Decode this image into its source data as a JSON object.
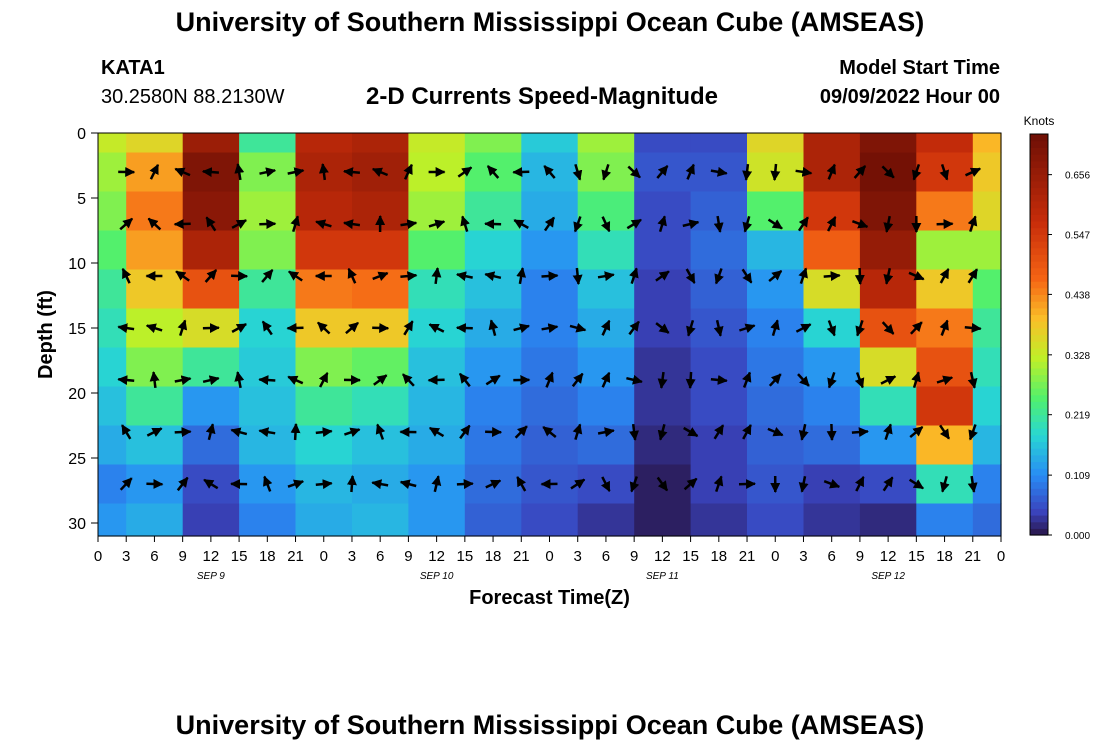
{
  "header": {
    "title": "University of Southern Mississippi Ocean Cube (AMSEAS)",
    "station_id": "KATA1",
    "coords": "30.2580N  88.2130W",
    "subtitle": "2-D Currents Speed-Magnitude",
    "model_start_label": "Model Start Time",
    "model_start_value": "09/09/2022 Hour 00",
    "bottom_title": "University of Southern Mississippi Ocean Cube (AMSEAS)"
  },
  "colorbar": {
    "unit_label": "Knots",
    "tick_labels": [
      "0.656",
      "0.547",
      "0.438",
      "0.328",
      "0.219",
      "0.109",
      "0.000"
    ],
    "tick_values": [
      0.656,
      0.547,
      0.438,
      0.328,
      0.219,
      0.109,
      0.0
    ],
    "range": [
      0.0,
      0.73
    ]
  },
  "chart_data": {
    "type": "heatmap",
    "title": "2-D Currents Speed-Magnitude",
    "xlabel": "Forecast Time(Z)",
    "ylabel": "Depth (ft)",
    "x_ticks": [
      "0",
      "3",
      "6",
      "9",
      "12",
      "15",
      "18",
      "21",
      "0",
      "3",
      "6",
      "9",
      "12",
      "15",
      "18",
      "21",
      "0",
      "3",
      "6",
      "9",
      "12",
      "15",
      "18",
      "21",
      "0",
      "3",
      "6",
      "9",
      "12",
      "15",
      "18",
      "21",
      "0"
    ],
    "x_hours_range": [
      0,
      96
    ],
    "date_labels": [
      {
        "text": "SEP 9",
        "hour": 12
      },
      {
        "text": "SEP 10",
        "hour": 36
      },
      {
        "text": "SEP 11",
        "hour": 60
      },
      {
        "text": "SEP 12",
        "hour": 84
      }
    ],
    "y_ticks": [
      "0",
      "5",
      "10",
      "15",
      "20",
      "25",
      "30"
    ],
    "y_tick_values": [
      0,
      5,
      10,
      15,
      20,
      25,
      30
    ],
    "ylim": [
      31,
      0
    ],
    "depths_ft": [
      0,
      3,
      6,
      9,
      12,
      15,
      18,
      21,
      24,
      27,
      30
    ],
    "hours": [
      0,
      6,
      12,
      18,
      24,
      30,
      36,
      42,
      48,
      54,
      60,
      66,
      72,
      78,
      84,
      90,
      96
    ],
    "speed_knots": [
      [
        0.33,
        0.36,
        0.65,
        0.22,
        0.6,
        0.62,
        0.33,
        0.28,
        0.17,
        0.3,
        0.05,
        0.05,
        0.36,
        0.62,
        0.7,
        0.58,
        0.4
      ],
      [
        0.3,
        0.42,
        0.7,
        0.28,
        0.62,
        0.64,
        0.32,
        0.25,
        0.15,
        0.28,
        0.06,
        0.06,
        0.34,
        0.62,
        0.72,
        0.55,
        0.38
      ],
      [
        0.28,
        0.45,
        0.68,
        0.3,
        0.6,
        0.62,
        0.3,
        0.22,
        0.14,
        0.24,
        0.05,
        0.07,
        0.25,
        0.55,
        0.7,
        0.45,
        0.36
      ],
      [
        0.25,
        0.42,
        0.62,
        0.28,
        0.55,
        0.55,
        0.25,
        0.18,
        0.12,
        0.2,
        0.05,
        0.08,
        0.15,
        0.48,
        0.66,
        0.3,
        0.3
      ],
      [
        0.22,
        0.38,
        0.5,
        0.22,
        0.45,
        0.46,
        0.2,
        0.16,
        0.1,
        0.16,
        0.04,
        0.07,
        0.12,
        0.35,
        0.6,
        0.38,
        0.25
      ],
      [
        0.2,
        0.32,
        0.35,
        0.18,
        0.38,
        0.38,
        0.18,
        0.14,
        0.1,
        0.14,
        0.04,
        0.06,
        0.1,
        0.18,
        0.5,
        0.45,
        0.22
      ],
      [
        0.18,
        0.28,
        0.22,
        0.17,
        0.28,
        0.26,
        0.16,
        0.12,
        0.09,
        0.12,
        0.03,
        0.05,
        0.09,
        0.12,
        0.35,
        0.5,
        0.2
      ],
      [
        0.16,
        0.22,
        0.12,
        0.16,
        0.22,
        0.2,
        0.15,
        0.1,
        0.08,
        0.1,
        0.03,
        0.05,
        0.08,
        0.1,
        0.2,
        0.55,
        0.18
      ],
      [
        0.14,
        0.16,
        0.08,
        0.15,
        0.18,
        0.16,
        0.14,
        0.09,
        0.07,
        0.08,
        0.02,
        0.04,
        0.07,
        0.08,
        0.12,
        0.4,
        0.15
      ],
      [
        0.1,
        0.12,
        0.05,
        0.12,
        0.15,
        0.14,
        0.12,
        0.08,
        0.06,
        0.05,
        0.01,
        0.04,
        0.06,
        0.04,
        0.05,
        0.2,
        0.1
      ],
      [
        0.12,
        0.14,
        0.04,
        0.1,
        0.14,
        0.15,
        0.12,
        0.07,
        0.05,
        0.03,
        0.01,
        0.03,
        0.05,
        0.03,
        0.02,
        0.1,
        0.08
      ]
    ]
  }
}
